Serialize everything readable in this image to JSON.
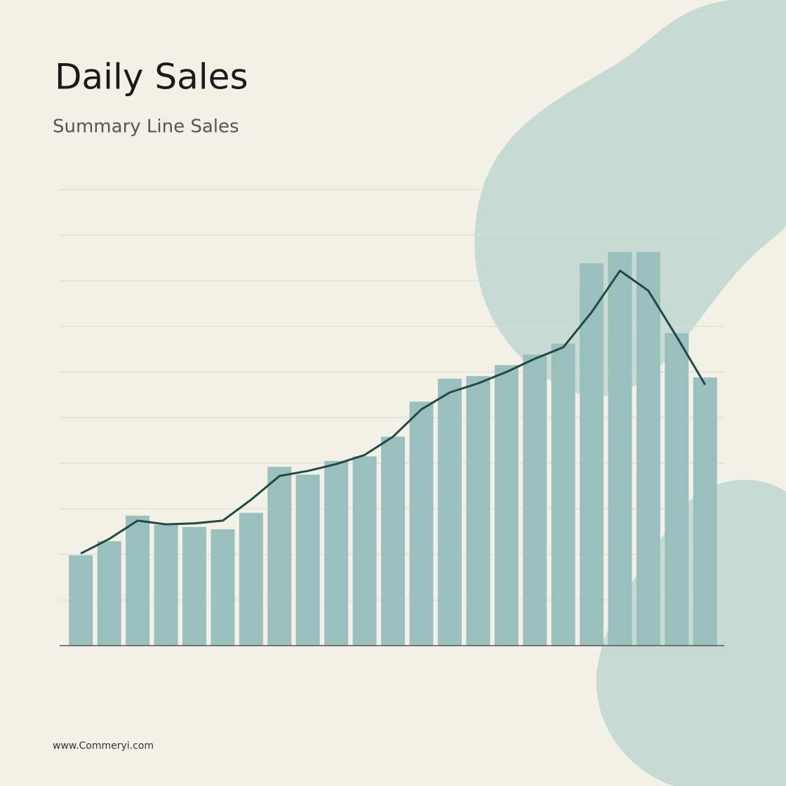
{
  "chart_data": {
    "type": "bar-line",
    "title": "Daily Sales",
    "subtitle": "Summary Line Sales",
    "categories": [
      null,
      null,
      null,
      null,
      null,
      null,
      null,
      null,
      null,
      null,
      null,
      null,
      null,
      null,
      null,
      null,
      null,
      null,
      null,
      null,
      null,
      null,
      null
    ],
    "series": [
      {
        "type": "bar",
        "color": "#9bbfbd",
        "values": [
          1.98,
          2.29,
          2.85,
          2.65,
          2.6,
          2.55,
          2.91,
          3.92,
          3.75,
          4.05,
          4.15,
          4.58,
          5.35,
          5.85,
          5.91,
          6.15,
          6.38,
          6.62,
          8.38,
          8.63,
          8.63,
          6.85,
          5.88
        ]
      },
      {
        "type": "line",
        "color": "#1f4a44",
        "values": [
          2.02,
          2.34,
          2.74,
          2.66,
          2.68,
          2.74,
          3.2,
          3.72,
          3.83,
          3.98,
          4.18,
          4.58,
          5.18,
          5.55,
          5.75,
          6.0,
          6.29,
          6.54,
          7.31,
          8.22,
          7.78,
          6.77,
          5.72
        ]
      }
    ],
    "ylim": [
      0,
      10
    ],
    "yticks": [
      0,
      1,
      2,
      3,
      4,
      5,
      6,
      7,
      8,
      9,
      10
    ],
    "grid": true,
    "footer": "www.Commeryi.com"
  }
}
